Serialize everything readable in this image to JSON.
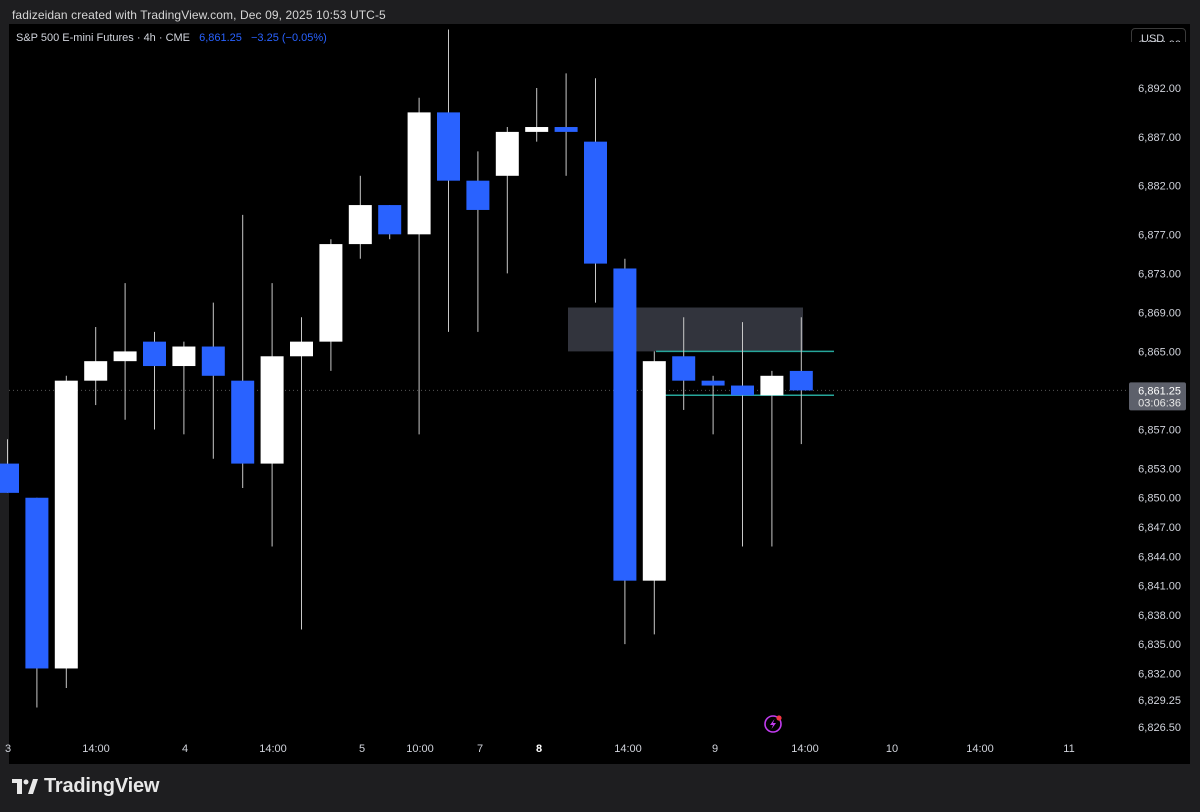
{
  "credit": "fadizeidan created with TradingView.com, Dec 09, 2025 10:53 UTC-5",
  "legend": {
    "symbol": "S&P 500 E-mini Futures · 4h · CME",
    "price": "6,861.25",
    "change": "−3.25 (−0.05%)"
  },
  "currency_button": "USD",
  "brand": "TradingView",
  "colors": {
    "up_candle": "#ffffff",
    "down_candle": "#2962ff",
    "background": "#000000",
    "zone": "#434651",
    "zone_lines": "#26a69a",
    "price_label_bg": "#5d606b"
  },
  "chart_data": {
    "type": "candlestick",
    "y_axis": {
      "tick_labels": [
        "6,892.00",
        "6,887.00",
        "6,882.00",
        "6,877.00",
        "6,873.00",
        "6,869.00",
        "6,865.00",
        "6,857.00",
        "6,853.00",
        "6,850.00",
        "6,847.00",
        "6,844.00",
        "6,841.00",
        "6,838.00",
        "6,835.00",
        "6,832.00",
        "6,829.25",
        "6,826.50"
      ],
      "ylim": [
        6825,
        6896
      ]
    },
    "x_axis": {
      "tick_labels": [
        "3",
        "14:00",
        "4",
        "14:00",
        "5",
        "10:00",
        "7",
        "8",
        "14:00",
        "9",
        "14:00",
        "10",
        "14:00",
        "11"
      ],
      "bold_labels": [
        "8"
      ]
    },
    "last_price": {
      "price": "6,861.25",
      "countdown": "03:06:36"
    },
    "candles": [
      {
        "open": 6853.5,
        "high": 6856.0,
        "low": 6850.5,
        "close": 6850.5
      },
      {
        "open": 6850.0,
        "high": 6850.0,
        "low": 6828.5,
        "close": 6832.5
      },
      {
        "open": 6832.5,
        "high": 6862.5,
        "low": 6830.5,
        "close": 6862.0
      },
      {
        "open": 6862.0,
        "high": 6867.5,
        "low": 6859.5,
        "close": 6864.0
      },
      {
        "open": 6864.0,
        "high": 6872.0,
        "low": 6858.0,
        "close": 6865.0
      },
      {
        "open": 6866.0,
        "high": 6867.0,
        "low": 6857.0,
        "close": 6863.5
      },
      {
        "open": 6863.5,
        "high": 6866.0,
        "low": 6856.5,
        "close": 6865.5
      },
      {
        "open": 6865.5,
        "high": 6870.0,
        "low": 6854.0,
        "close": 6862.5
      },
      {
        "open": 6862.0,
        "high": 6879.0,
        "low": 6851.0,
        "close": 6853.5
      },
      {
        "open": 6853.5,
        "high": 6872.0,
        "low": 6845.0,
        "close": 6864.5
      },
      {
        "open": 6864.5,
        "high": 6868.5,
        "low": 6836.5,
        "close": 6866.0
      },
      {
        "open": 6866.0,
        "high": 6876.5,
        "low": 6863.0,
        "close": 6876.0
      },
      {
        "open": 6876.0,
        "high": 6883.0,
        "low": 6874.5,
        "close": 6880.0
      },
      {
        "open": 6880.0,
        "high": 6880.0,
        "low": 6876.5,
        "close": 6877.0
      },
      {
        "open": 6877.0,
        "high": 6891.0,
        "low": 6856.5,
        "close": 6889.5
      },
      {
        "open": 6889.5,
        "high": 6898.0,
        "low": 6867.0,
        "close": 6882.5
      },
      {
        "open": 6882.5,
        "high": 6885.5,
        "low": 6867.0,
        "close": 6879.5
      },
      {
        "open": 6883.0,
        "high": 6888.0,
        "low": 6873.0,
        "close": 6887.5
      },
      {
        "open": 6887.5,
        "high": 6892.0,
        "low": 6886.5,
        "close": 6888.0
      },
      {
        "open": 6888.0,
        "high": 6893.5,
        "low": 6883.0,
        "close": 6887.5
      },
      {
        "open": 6886.5,
        "high": 6893.0,
        "low": 6870.0,
        "close": 6874.0
      },
      {
        "open": 6873.5,
        "high": 6874.5,
        "low": 6835.0,
        "close": 6841.5
      },
      {
        "open": 6841.5,
        "high": 6865.0,
        "low": 6836.0,
        "close": 6864.0
      },
      {
        "open": 6864.5,
        "high": 6868.5,
        "low": 6859.0,
        "close": 6862.0
      },
      {
        "open": 6862.0,
        "high": 6862.5,
        "low": 6856.5,
        "close": 6861.5
      },
      {
        "open": 6861.5,
        "high": 6868.0,
        "low": 6845.0,
        "close": 6860.5
      },
      {
        "open": 6860.5,
        "high": 6863.0,
        "low": 6845.0,
        "close": 6862.5
      },
      {
        "open": 6863.0,
        "high": 6868.5,
        "low": 6855.5,
        "close": 6861.0
      }
    ],
    "zones": [
      {
        "label": "",
        "from": 6865.0,
        "to": 6869.5
      },
      {
        "label": "",
        "line_top": 6865.0,
        "line_bottom": 6860.5
      }
    ]
  }
}
